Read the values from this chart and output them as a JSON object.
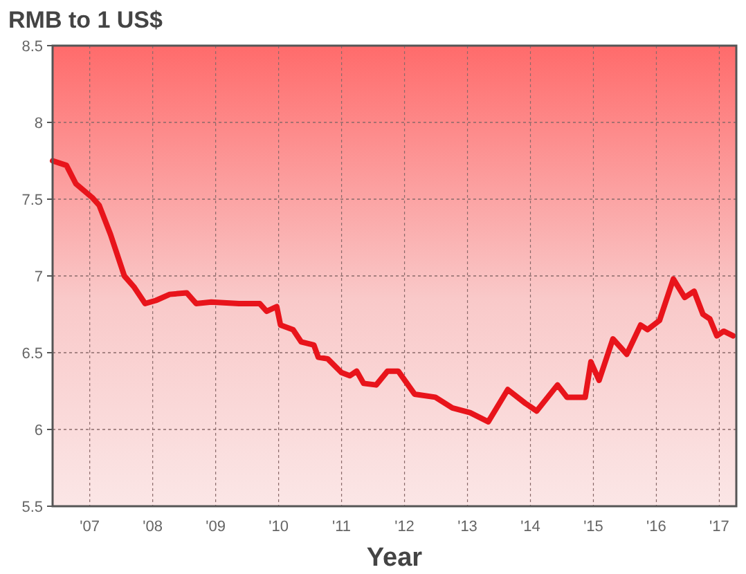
{
  "chart_data": {
    "type": "line",
    "title": "RMB to 1 US$",
    "xlabel": "Year",
    "xlim": [
      2006.41,
      2017.27
    ],
    "ylim": [
      5.5,
      8.5
    ],
    "xticks": [
      {
        "value": 2007,
        "label": "'07"
      },
      {
        "value": 2008,
        "label": "'08"
      },
      {
        "value": 2009,
        "label": "'09"
      },
      {
        "value": 2010,
        "label": "'10"
      },
      {
        "value": 2011,
        "label": "'11"
      },
      {
        "value": 2012,
        "label": "'12"
      },
      {
        "value": 2013,
        "label": "'13"
      },
      {
        "value": 2014,
        "label": "'14"
      },
      {
        "value": 2015,
        "label": "'15"
      },
      {
        "value": 2016,
        "label": "'16"
      },
      {
        "value": 2017,
        "label": "'17"
      }
    ],
    "yticks": [
      5.5,
      6,
      6.5,
      7,
      7.5,
      8,
      8.5
    ],
    "grid": true,
    "marker": "none",
    "line_style": "solid",
    "series": [
      {
        "color": "#e8141b",
        "x": [
          2006.41,
          2006.63,
          2006.78,
          2007.04,
          2007.15,
          2007.33,
          2007.55,
          2007.7,
          2007.88,
          2008.05,
          2008.27,
          2008.54,
          2008.69,
          2008.93,
          2009.37,
          2009.7,
          2009.81,
          2009.97,
          2010.03,
          2010.23,
          2010.36,
          2010.56,
          2010.63,
          2010.78,
          2011.0,
          2011.13,
          2011.24,
          2011.35,
          2011.55,
          2011.73,
          2011.9,
          2012.16,
          2012.49,
          2012.76,
          2013.04,
          2013.33,
          2013.64,
          2013.92,
          2014.1,
          2014.43,
          2014.58,
          2014.87,
          2014.96,
          2015.09,
          2015.31,
          2015.53,
          2015.75,
          2015.86,
          2016.05,
          2016.27,
          2016.45,
          2016.6,
          2016.74,
          2016.85,
          2016.96,
          2017.07,
          2017.22
        ],
        "values": [
          7.75,
          7.72,
          7.6,
          7.51,
          7.46,
          7.27,
          7.0,
          6.93,
          6.82,
          6.84,
          6.88,
          6.89,
          6.82,
          6.83,
          6.82,
          6.82,
          6.77,
          6.8,
          6.68,
          6.65,
          6.57,
          6.55,
          6.47,
          6.46,
          6.37,
          6.35,
          6.38,
          6.3,
          6.29,
          6.38,
          6.38,
          6.23,
          6.21,
          6.14,
          6.11,
          6.05,
          6.26,
          6.17,
          6.12,
          6.29,
          6.21,
          6.21,
          6.44,
          6.32,
          6.59,
          6.49,
          6.68,
          6.65,
          6.71,
          6.98,
          6.86,
          6.9,
          6.75,
          6.72,
          6.61,
          6.64,
          6.61
        ]
      }
    ]
  }
}
